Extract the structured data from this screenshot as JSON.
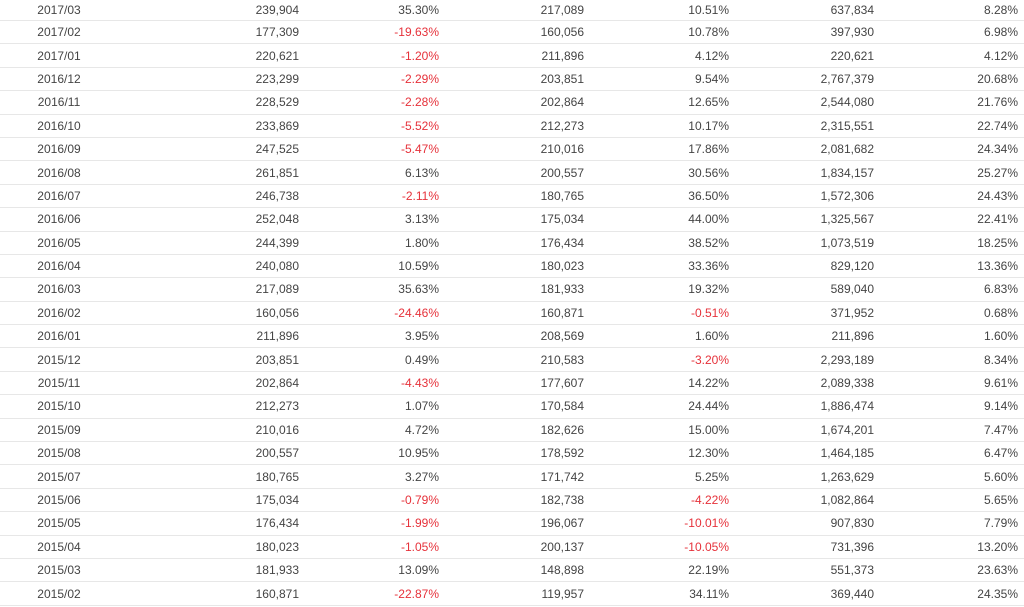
{
  "colors": {
    "text": "#444444",
    "negative": "#e6313a",
    "row_border": "#e7e7e7"
  },
  "rows": [
    [
      "2017/03",
      "239,904",
      "35.30%",
      "217,089",
      "10.51%",
      "637,834",
      "8.28%"
    ],
    [
      "2017/02",
      "177,309",
      "-19.63%",
      "160,056",
      "10.78%",
      "397,930",
      "6.98%"
    ],
    [
      "2017/01",
      "220,621",
      "-1.20%",
      "211,896",
      "4.12%",
      "220,621",
      "4.12%"
    ],
    [
      "2016/12",
      "223,299",
      "-2.29%",
      "203,851",
      "9.54%",
      "2,767,379",
      "20.68%"
    ],
    [
      "2016/11",
      "228,529",
      "-2.28%",
      "202,864",
      "12.65%",
      "2,544,080",
      "21.76%"
    ],
    [
      "2016/10",
      "233,869",
      "-5.52%",
      "212,273",
      "10.17%",
      "2,315,551",
      "22.74%"
    ],
    [
      "2016/09",
      "247,525",
      "-5.47%",
      "210,016",
      "17.86%",
      "2,081,682",
      "24.34%"
    ],
    [
      "2016/08",
      "261,851",
      "6.13%",
      "200,557",
      "30.56%",
      "1,834,157",
      "25.27%"
    ],
    [
      "2016/07",
      "246,738",
      "-2.11%",
      "180,765",
      "36.50%",
      "1,572,306",
      "24.43%"
    ],
    [
      "2016/06",
      "252,048",
      "3.13%",
      "175,034",
      "44.00%",
      "1,325,567",
      "22.41%"
    ],
    [
      "2016/05",
      "244,399",
      "1.80%",
      "176,434",
      "38.52%",
      "1,073,519",
      "18.25%"
    ],
    [
      "2016/04",
      "240,080",
      "10.59%",
      "180,023",
      "33.36%",
      "829,120",
      "13.36%"
    ],
    [
      "2016/03",
      "217,089",
      "35.63%",
      "181,933",
      "19.32%",
      "589,040",
      "6.83%"
    ],
    [
      "2016/02",
      "160,056",
      "-24.46%",
      "160,871",
      "-0.51%",
      "371,952",
      "0.68%"
    ],
    [
      "2016/01",
      "211,896",
      "3.95%",
      "208,569",
      "1.60%",
      "211,896",
      "1.60%"
    ],
    [
      "2015/12",
      "203,851",
      "0.49%",
      "210,583",
      "-3.20%",
      "2,293,189",
      "8.34%"
    ],
    [
      "2015/11",
      "202,864",
      "-4.43%",
      "177,607",
      "14.22%",
      "2,089,338",
      "9.61%"
    ],
    [
      "2015/10",
      "212,273",
      "1.07%",
      "170,584",
      "24.44%",
      "1,886,474",
      "9.14%"
    ],
    [
      "2015/09",
      "210,016",
      "4.72%",
      "182,626",
      "15.00%",
      "1,674,201",
      "7.47%"
    ],
    [
      "2015/08",
      "200,557",
      "10.95%",
      "178,592",
      "12.30%",
      "1,464,185",
      "6.47%"
    ],
    [
      "2015/07",
      "180,765",
      "3.27%",
      "171,742",
      "5.25%",
      "1,263,629",
      "5.60%"
    ],
    [
      "2015/06",
      "175,034",
      "-0.79%",
      "182,738",
      "-4.22%",
      "1,082,864",
      "5.65%"
    ],
    [
      "2015/05",
      "176,434",
      "-1.99%",
      "196,067",
      "-10.01%",
      "907,830",
      "7.79%"
    ],
    [
      "2015/04",
      "180,023",
      "-1.05%",
      "200,137",
      "-10.05%",
      "731,396",
      "13.20%"
    ],
    [
      "2015/03",
      "181,933",
      "13.09%",
      "148,898",
      "22.19%",
      "551,373",
      "23.63%"
    ],
    [
      "2015/02",
      "160,871",
      "-22.87%",
      "119,957",
      "34.11%",
      "369,440",
      "24.35%"
    ]
  ]
}
